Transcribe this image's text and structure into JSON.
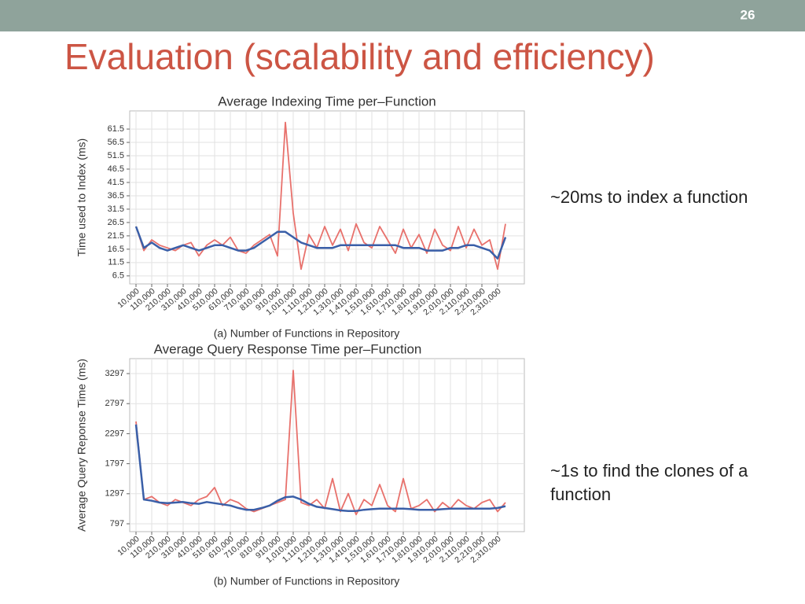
{
  "slide": {
    "page_number": "26",
    "title": "Evaluation (scalability and efficiency)",
    "notes": [
      [
        "~20ms to index a function"
      ],
      [
        "~1s to find the clones of a",
        "function"
      ]
    ]
  },
  "chart_data": [
    {
      "type": "line",
      "title": "Average Indexing Time per–Function",
      "x_label": "(a) Number of Functions in Repository",
      "y_label": "Time used to Index (ms)",
      "x": [
        10000,
        60000,
        110000,
        160000,
        210000,
        260000,
        310000,
        360000,
        410000,
        460000,
        510000,
        560000,
        610000,
        660000,
        710000,
        760000,
        810000,
        860000,
        910000,
        960000,
        1010000,
        1060000,
        1110000,
        1160000,
        1210000,
        1260000,
        1310000,
        1360000,
        1410000,
        1460000,
        1510000,
        1560000,
        1610000,
        1660000,
        1710000,
        1760000,
        1810000,
        1860000,
        1910000,
        1960000,
        2010000,
        2060000,
        2110000,
        2160000,
        2210000,
        2260000,
        2310000,
        2360000
      ],
      "series": [
        {
          "color": "#e8716c",
          "values": [
            25,
            16,
            20,
            18,
            17,
            16,
            18,
            19,
            14,
            18,
            20,
            18,
            21,
            16,
            15,
            18,
            20,
            22,
            14,
            64,
            30,
            9,
            22,
            17,
            25,
            18,
            24,
            16,
            26,
            19,
            17,
            25,
            20,
            15,
            24,
            17,
            22,
            15,
            24,
            18,
            16,
            25,
            17,
            24,
            18,
            20,
            9,
            26
          ]
        },
        {
          "color": "#3a5fa8",
          "values": [
            25,
            17,
            19,
            17,
            16,
            17,
            18,
            17,
            16,
            17,
            18,
            18,
            17,
            16,
            16,
            17,
            19,
            21,
            23,
            23,
            21,
            19,
            18,
            17,
            17,
            17,
            18,
            18,
            18,
            18,
            18,
            18,
            18,
            18,
            17,
            17,
            17,
            16,
            16,
            16,
            17,
            17,
            18,
            18,
            17,
            16,
            13,
            21
          ]
        }
      ],
      "xlim": [
        -30000,
        2480000
      ],
      "xticks": [
        {
          "value": 10000,
          "label": "10,000"
        },
        {
          "value": 110000,
          "label": "110,000"
        },
        {
          "value": 210000,
          "label": "210,000"
        },
        {
          "value": 310000,
          "label": "310,000"
        },
        {
          "value": 410000,
          "label": "410,000"
        },
        {
          "value": 510000,
          "label": "510,000"
        },
        {
          "value": 610000,
          "label": "610,000"
        },
        {
          "value": 710000,
          "label": "710,000"
        },
        {
          "value": 810000,
          "label": "810,000"
        },
        {
          "value": 910000,
          "label": "910,000"
        },
        {
          "value": 1010000,
          "label": "1,010,000"
        },
        {
          "value": 1110000,
          "label": "1,110,000"
        },
        {
          "value": 1210000,
          "label": "1,210,000"
        },
        {
          "value": 1310000,
          "label": "1,310,000"
        },
        {
          "value": 1410000,
          "label": "1,410,000"
        },
        {
          "value": 1510000,
          "label": "1,510,000"
        },
        {
          "value": 1610000,
          "label": "1,610,000"
        },
        {
          "value": 1710000,
          "label": "1,710,000"
        },
        {
          "value": 1810000,
          "label": "1,810,000"
        },
        {
          "value": 1910000,
          "label": "1,910,000"
        },
        {
          "value": 2010000,
          "label": "2,010,000"
        },
        {
          "value": 2110000,
          "label": "2,110,000"
        },
        {
          "value": 2210000,
          "label": "2,210,000"
        },
        {
          "value": 2310000,
          "label": "2,310,000"
        }
      ],
      "ylim": [
        3.5,
        68.3
      ],
      "yticks": [
        6.5,
        11.5,
        16.5,
        21.5,
        26.5,
        31.5,
        36.5,
        41.5,
        46.5,
        51.5,
        56.5,
        61.5
      ],
      "grid": true
    },
    {
      "type": "line",
      "title": "Average Query Response Time per–Function",
      "x_label": "(b) Number of Functions in Repository",
      "y_label": "Average Query Reponse Time (ms)",
      "x": [
        10000,
        60000,
        110000,
        160000,
        210000,
        260000,
        310000,
        360000,
        410000,
        460000,
        510000,
        560000,
        610000,
        660000,
        710000,
        760000,
        810000,
        860000,
        910000,
        960000,
        1010000,
        1060000,
        1110000,
        1160000,
        1210000,
        1260000,
        1310000,
        1360000,
        1410000,
        1460000,
        1510000,
        1560000,
        1610000,
        1660000,
        1710000,
        1760000,
        1810000,
        1860000,
        1910000,
        1960000,
        2010000,
        2060000,
        2110000,
        2160000,
        2210000,
        2260000,
        2310000,
        2360000
      ],
      "series": [
        {
          "color": "#e8716c",
          "values": [
            2500,
            1200,
            1250,
            1150,
            1100,
            1200,
            1150,
            1100,
            1200,
            1250,
            1400,
            1100,
            1200,
            1150,
            1050,
            1000,
            1050,
            1100,
            1150,
            1200,
            3350,
            1150,
            1100,
            1200,
            1050,
            1550,
            1000,
            1300,
            950,
            1200,
            1100,
            1450,
            1100,
            1000,
            1550,
            1050,
            1100,
            1200,
            1000,
            1150,
            1050,
            1200,
            1100,
            1050,
            1150,
            1200,
            1000,
            1150
          ]
        },
        {
          "color": "#3a5fa8",
          "values": [
            2450,
            1200,
            1180,
            1150,
            1140,
            1150,
            1160,
            1140,
            1130,
            1160,
            1140,
            1120,
            1100,
            1060,
            1030,
            1030,
            1060,
            1100,
            1180,
            1240,
            1250,
            1200,
            1130,
            1080,
            1060,
            1040,
            1020,
            1010,
            1010,
            1030,
            1040,
            1050,
            1050,
            1050,
            1050,
            1040,
            1030,
            1030,
            1030,
            1040,
            1050,
            1050,
            1050,
            1050,
            1050,
            1050,
            1060,
            1090
          ]
        }
      ],
      "xlim": [
        -30000,
        2480000
      ],
      "xticks": [
        {
          "value": 10000,
          "label": "10,000"
        },
        {
          "value": 110000,
          "label": "110,000"
        },
        {
          "value": 210000,
          "label": "210,000"
        },
        {
          "value": 310000,
          "label": "310,000"
        },
        {
          "value": 410000,
          "label": "410,000"
        },
        {
          "value": 510000,
          "label": "510,000"
        },
        {
          "value": 610000,
          "label": "610,000"
        },
        {
          "value": 710000,
          "label": "710,000"
        },
        {
          "value": 810000,
          "label": "810,000"
        },
        {
          "value": 910000,
          "label": "910,000"
        },
        {
          "value": 1010000,
          "label": "1,010,000"
        },
        {
          "value": 1110000,
          "label": "1,110,000"
        },
        {
          "value": 1210000,
          "label": "1,210,000"
        },
        {
          "value": 1310000,
          "label": "1,310,000"
        },
        {
          "value": 1410000,
          "label": "1,410,000"
        },
        {
          "value": 1510000,
          "label": "1,510,000"
        },
        {
          "value": 1610000,
          "label": "1,610,000"
        },
        {
          "value": 1710000,
          "label": "1,710,000"
        },
        {
          "value": 1810000,
          "label": "1,810,000"
        },
        {
          "value": 1910000,
          "label": "1,910,000"
        },
        {
          "value": 2010000,
          "label": "2,010,000"
        },
        {
          "value": 2110000,
          "label": "2,110,000"
        },
        {
          "value": 2210000,
          "label": "2,210,000"
        },
        {
          "value": 2310000,
          "label": "2,310,000"
        }
      ],
      "ylim": [
        666,
        3546
      ],
      "yticks": [
        797,
        1297,
        1797,
        2297,
        2797,
        3297
      ],
      "grid": true
    }
  ]
}
